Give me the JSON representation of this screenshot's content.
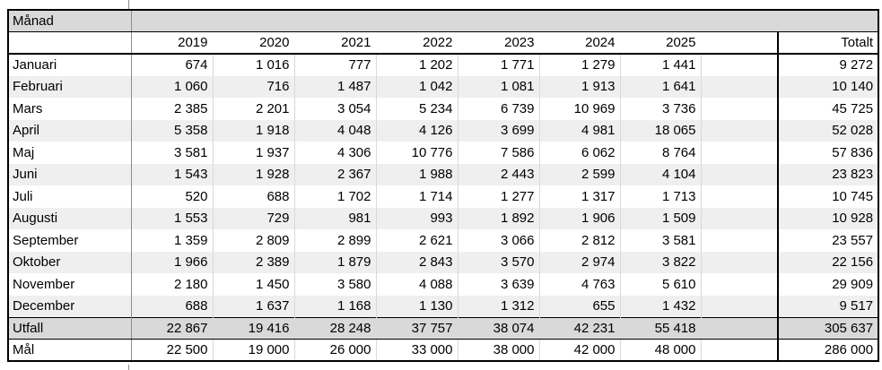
{
  "table": {
    "corner_label": "Månad",
    "columns": [
      "2019",
      "2020",
      "2021",
      "2022",
      "2023",
      "2024",
      "2025"
    ],
    "total_label": "Totalt",
    "months": [
      {
        "label": "Januari",
        "values": [
          {
            "v": "674"
          },
          {
            "v": "1 016"
          },
          {
            "v": "777"
          },
          {
            "v": "1 202"
          },
          {
            "v": "1 771",
            "red": true
          },
          {
            "v": "1 279"
          },
          {
            "v": "1 441"
          }
        ],
        "total": "9 272"
      },
      {
        "label": "Februari",
        "values": [
          {
            "v": "1 060"
          },
          {
            "v": "716"
          },
          {
            "v": "1 487"
          },
          {
            "v": "1 042"
          },
          {
            "v": "1 081"
          },
          {
            "v": "1 913",
            "red": true
          },
          {
            "v": "1 641"
          }
        ],
        "total": "10 140"
      },
      {
        "label": "Mars",
        "values": [
          {
            "v": "2 385"
          },
          {
            "v": "2 201"
          },
          {
            "v": "3 054"
          },
          {
            "v": "5 234"
          },
          {
            "v": "6 739"
          },
          {
            "v": "10 969",
            "red": true
          },
          {
            "v": "3 736"
          }
        ],
        "total": "45 725"
      },
      {
        "label": "April",
        "values": [
          {
            "v": "5 358"
          },
          {
            "v": "1 918"
          },
          {
            "v": "4 048"
          },
          {
            "v": "4 126"
          },
          {
            "v": "3 699"
          },
          {
            "v": "4 981"
          },
          {
            "v": "18 065",
            "red": true
          }
        ],
        "total": "52 028"
      },
      {
        "label": "Maj",
        "values": [
          {
            "v": "3 581"
          },
          {
            "v": "1 937"
          },
          {
            "v": "4 306"
          },
          {
            "v": "10 776",
            "red": true
          },
          {
            "v": "7 586"
          },
          {
            "v": "6 062"
          },
          {
            "v": "8 764"
          }
        ],
        "total": "57 836"
      },
      {
        "label": "Juni",
        "values": [
          {
            "v": "1 543"
          },
          {
            "v": "1 928"
          },
          {
            "v": "2 367"
          },
          {
            "v": "1 988"
          },
          {
            "v": "2 443"
          },
          {
            "v": "2 599"
          },
          {
            "v": "4 104",
            "red": true
          }
        ],
        "total": "23 823"
      },
      {
        "label": "Juli",
        "values": [
          {
            "v": "520"
          },
          {
            "v": "688"
          },
          {
            "v": "1 702"
          },
          {
            "v": "1 714",
            "red": true
          },
          {
            "v": "1 277"
          },
          {
            "v": "1 317"
          },
          {
            "v": "1 713"
          }
        ],
        "total": "10 745"
      },
      {
        "label": "Augusti",
        "values": [
          {
            "v": "1 553"
          },
          {
            "v": "729"
          },
          {
            "v": "981"
          },
          {
            "v": "993"
          },
          {
            "v": "1 892"
          },
          {
            "v": "1 906",
            "red": true
          },
          {
            "v": "1 509"
          }
        ],
        "total": "10 928"
      },
      {
        "label": "September",
        "values": [
          {
            "v": "1 359"
          },
          {
            "v": "2 809"
          },
          {
            "v": "2 899"
          },
          {
            "v": "2 621"
          },
          {
            "v": "3 066"
          },
          {
            "v": "2 812"
          },
          {
            "v": "3 581",
            "red": true
          }
        ],
        "total": "23 557"
      },
      {
        "label": "Oktober",
        "values": [
          {
            "v": "1 966"
          },
          {
            "v": "2 389"
          },
          {
            "v": "1 879"
          },
          {
            "v": "2 843"
          },
          {
            "v": "3 570"
          },
          {
            "v": "2 974"
          },
          {
            "v": "3 822",
            "red": true
          }
        ],
        "total": "22 156"
      },
      {
        "label": "November",
        "values": [
          {
            "v": "2 180"
          },
          {
            "v": "1 450"
          },
          {
            "v": "3 580"
          },
          {
            "v": "4 088"
          },
          {
            "v": "3 639"
          },
          {
            "v": "4 763"
          },
          {
            "v": "5 610",
            "red": true
          }
        ],
        "total": "29 909"
      },
      {
        "label": "December",
        "values": [
          {
            "v": "688"
          },
          {
            "v": "1 637",
            "red": true
          },
          {
            "v": "1 168"
          },
          {
            "v": "1 130"
          },
          {
            "v": "1 312"
          },
          {
            "v": "655"
          },
          {
            "v": "1 432"
          }
        ],
        "total": "9 517"
      }
    ],
    "utfall": {
      "label": "Utfall",
      "values": [
        {
          "v": "22 867"
        },
        {
          "v": "19 416"
        },
        {
          "v": "28 248"
        },
        {
          "v": "37 757"
        },
        {
          "v": "38 074"
        },
        {
          "v": "42 231"
        },
        {
          "v": "55 418"
        }
      ],
      "total": "305 637"
    },
    "mal": {
      "label": "Mål",
      "values": [
        {
          "v": "22 500"
        },
        {
          "v": "19 000"
        },
        {
          "v": "26 000"
        },
        {
          "v": "33 000"
        },
        {
          "v": "38 000"
        },
        {
          "v": "42 000"
        },
        {
          "v": "48 000"
        }
      ],
      "total": "286 000"
    }
  },
  "colors": {
    "highlight_red": "#FF0000",
    "band_gray": "#D9D9D9",
    "stripe_gray": "#EFEFEF",
    "divider_gray": "#8C8C8C",
    "light_gridline": "#D9D9D9",
    "border_black": "#000000"
  }
}
